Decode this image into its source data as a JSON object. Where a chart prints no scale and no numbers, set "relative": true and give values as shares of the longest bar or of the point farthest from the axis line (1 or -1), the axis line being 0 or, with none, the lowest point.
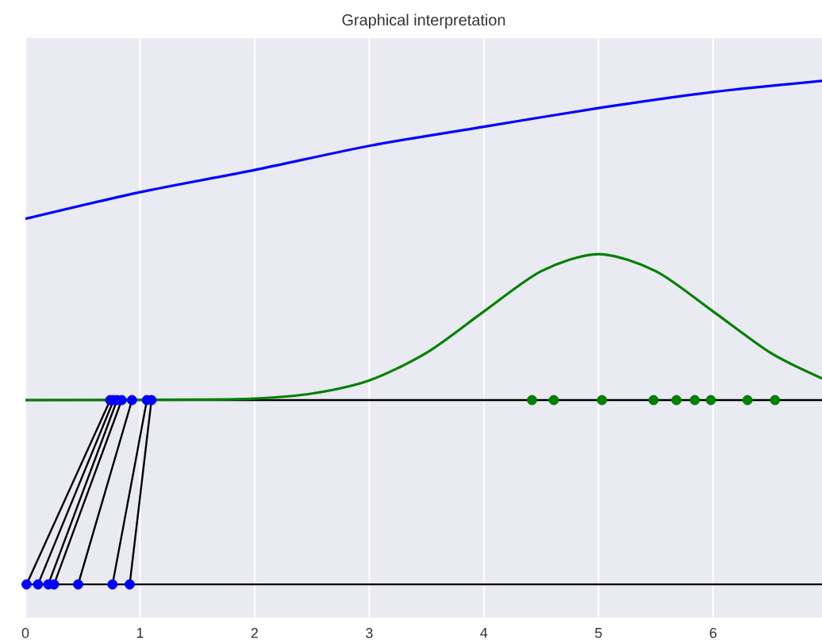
{
  "chart_data": {
    "type": "line",
    "title": "Graphical interpretation",
    "relative": true,
    "xlim": [
      0,
      6.95
    ],
    "xticks": [
      0,
      1,
      2,
      3,
      4,
      5,
      6
    ],
    "grid": "x",
    "series": [
      {
        "type": "line",
        "color": "#0000ff",
        "x": [
          0,
          1,
          2,
          3,
          4,
          5,
          6,
          6.95
        ],
        "values": [
          0.726,
          0.779,
          0.823,
          0.871,
          0.909,
          0.946,
          0.978,
          1
        ]
      },
      {
        "type": "line",
        "color": "#000000",
        "x": [
          0,
          6.95
        ],
        "values": [
          0,
          0
        ]
      },
      {
        "type": "line",
        "color": "#000000",
        "x": [
          0,
          6.95
        ],
        "values": [
          0.366,
          0.366
        ]
      },
      {
        "type": "line",
        "color": "#008000",
        "x": [
          0,
          1.5,
          2,
          2.5,
          3,
          3.5,
          4,
          4.5,
          5,
          5.5,
          6,
          6.5,
          6.95
        ],
        "values": [
          0.366,
          0.367,
          0.369,
          0.379,
          0.405,
          0.46,
          0.542,
          0.622,
          0.656,
          0.622,
          0.542,
          0.46,
          0.409
        ]
      },
      {
        "type": "line",
        "color": "#000000",
        "x": [
          0.01,
          0.74
        ],
        "values": [
          0,
          0.366
        ]
      },
      {
        "type": "line",
        "color": "#000000",
        "x": [
          0.11,
          0.77
        ],
        "values": [
          0,
          0.366
        ]
      },
      {
        "type": "line",
        "color": "#000000",
        "x": [
          0.2,
          0.8
        ],
        "values": [
          0,
          0.366
        ]
      },
      {
        "type": "line",
        "color": "#000000",
        "x": [
          0.25,
          0.84
        ],
        "values": [
          0,
          0.366
        ]
      },
      {
        "type": "line",
        "color": "#000000",
        "x": [
          0.46,
          0.93
        ],
        "values": [
          0,
          0.366
        ]
      },
      {
        "type": "line",
        "color": "#000000",
        "x": [
          0.76,
          1.06
        ],
        "values": [
          0,
          0.366
        ]
      },
      {
        "type": "line",
        "color": "#000000",
        "x": [
          0.91,
          1.1
        ],
        "values": [
          0,
          0.366
        ]
      },
      {
        "type": "scatter",
        "marker": "circle",
        "color": "#0000ff",
        "x": [
          0.01,
          0.11,
          0.2,
          0.25,
          0.46,
          0.76,
          0.91
        ],
        "values": [
          0,
          0,
          0,
          0,
          0,
          0,
          0
        ]
      },
      {
        "type": "scatter",
        "marker": "circle",
        "color": "#0000ff",
        "x": [
          0.74,
          0.77,
          0.8,
          0.84,
          0.93,
          1.06,
          1.1
        ],
        "values": [
          0.366,
          0.366,
          0.366,
          0.366,
          0.366,
          0.366,
          0.366
        ]
      },
      {
        "type": "scatter",
        "marker": "circle",
        "color": "#008000",
        "x": [
          4.42,
          4.61,
          5.03,
          5.48,
          5.68,
          5.84,
          5.98,
          6.3,
          6.54
        ],
        "values": [
          0.366,
          0.366,
          0.366,
          0.366,
          0.366,
          0.366,
          0.366,
          0.366,
          0.366
        ]
      }
    ]
  }
}
